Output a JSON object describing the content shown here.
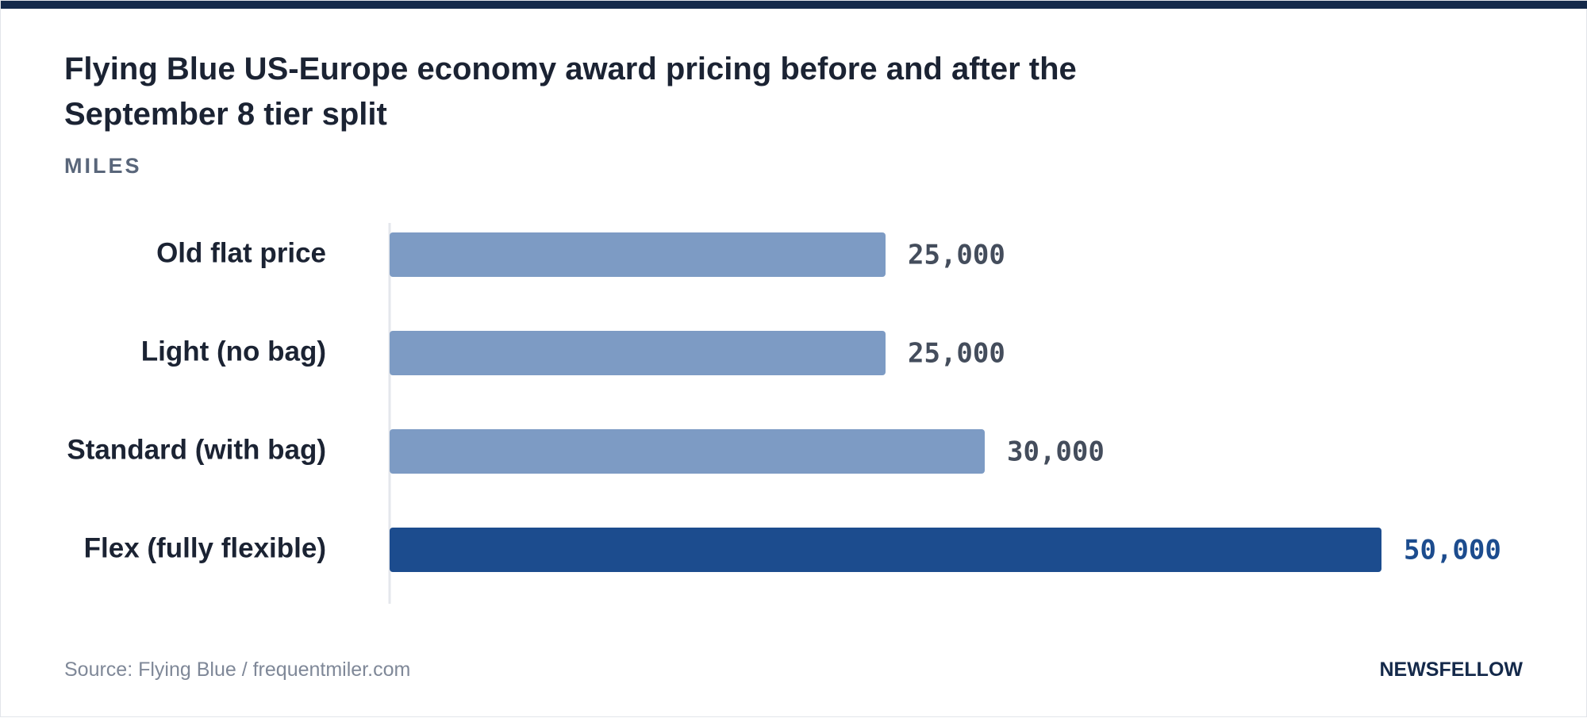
{
  "header": {
    "title": "Flying Blue US-Europe economy award pricing before and after the September 8 tier split",
    "unit": "MILES"
  },
  "footer": {
    "source": "Source: Flying Blue / frequentmiler.com",
    "brand": "NEWSFELLOW"
  },
  "colors": {
    "accent": "#14294a",
    "bar_default": "#7d9bc4",
    "bar_highlight": "#1c4c8e",
    "value_default": "#444d5c",
    "value_highlight": "#1c4c8e"
  },
  "chart_data": {
    "type": "bar",
    "orientation": "horizontal",
    "categories": [
      "Old flat price",
      "Light (no bag)",
      "Standard (with bag)",
      "Flex (fully flexible)"
    ],
    "values": [
      25000,
      25000,
      30000,
      50000
    ],
    "value_labels": [
      "25,000",
      "25,000",
      "30,000",
      "50,000"
    ],
    "highlight": [
      false,
      false,
      false,
      true
    ],
    "title": "Flying Blue US-Europe economy award pricing before and after the September 8 tier split",
    "xlabel": "",
    "ylabel": "",
    "unit": "MILES",
    "xlim": [
      0,
      50000
    ],
    "grid": false,
    "legend": "none"
  }
}
